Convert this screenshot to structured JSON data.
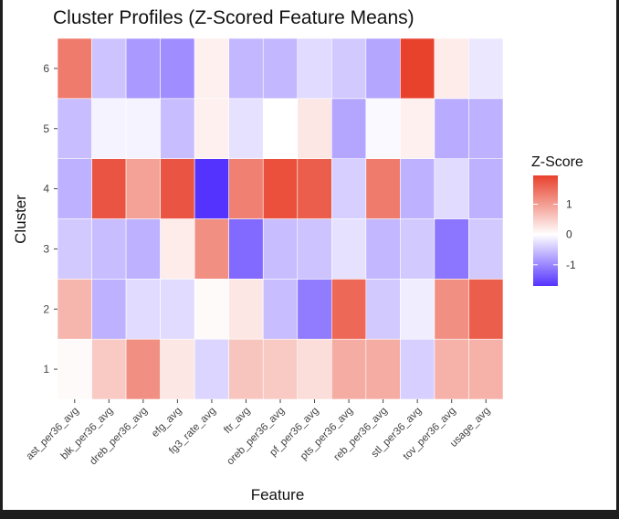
{
  "chart_data": {
    "type": "heatmap",
    "title": "Cluster Profiles (Z-Scored Feature Means)",
    "xlabel": "Feature",
    "ylabel": "Cluster",
    "x": [
      "ast_per36_avg",
      "blk_per36_avg",
      "dreb_per36_avg",
      "efg_avg",
      "fg3_rate_avg",
      "ftr_avg",
      "oreb_per36_avg",
      "pf_per36_avg",
      "pts_per36_avg",
      "reb_per36_avg",
      "stl_per36_avg",
      "tov_per36_avg",
      "usage_avg"
    ],
    "y": [
      "1",
      "2",
      "3",
      "4",
      "5",
      "6"
    ],
    "values": [
      [
        0.05,
        0.55,
        1.15,
        0.25,
        -0.35,
        0.6,
        0.55,
        0.35,
        0.85,
        0.85,
        -0.4,
        0.8,
        0.8
      ],
      [
        0.75,
        -0.65,
        -0.3,
        -0.3,
        0.05,
        0.25,
        -0.55,
        -1.1,
        1.55,
        -0.45,
        -0.15,
        1.15,
        1.65
      ],
      [
        -0.45,
        -0.55,
        -0.65,
        0.2,
        1.15,
        -1.25,
        -0.55,
        -0.5,
        -0.25,
        -0.6,
        -0.45,
        -1.15,
        -0.45
      ],
      [
        -0.65,
        1.75,
        0.95,
        1.75,
        -1.7,
        1.3,
        1.8,
        1.65,
        -0.4,
        1.35,
        -0.65,
        -0.3,
        -0.65
      ],
      [
        -0.55,
        -0.1,
        -0.1,
        -0.55,
        0.15,
        -0.25,
        0.0,
        0.25,
        -0.75,
        -0.05,
        0.15,
        -0.7,
        -0.65
      ],
      [
        1.35,
        -0.5,
        -0.85,
        -0.95,
        0.15,
        -0.6,
        -0.6,
        -0.3,
        -0.45,
        -0.75,
        1.95,
        0.2,
        -0.2
      ]
    ],
    "legend": {
      "title": "Z-Score",
      "ticks": [
        1,
        0,
        -1
      ],
      "tick_labels": [
        "1",
        "0",
        "-1"
      ],
      "range": [
        -1.7,
        1.95
      ],
      "low_color": "#5533ff",
      "mid_color": "#ffffff",
      "high_color": "#e8412c",
      "placement": "right"
    },
    "grid": true
  }
}
